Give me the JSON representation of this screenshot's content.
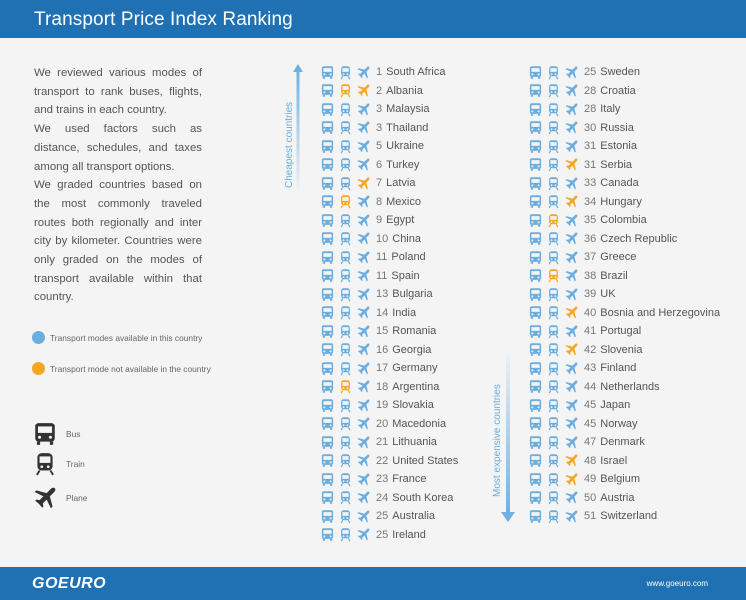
{
  "header": {
    "title": "Transport Price Index Ranking"
  },
  "intro": [
    "We reviewed various modes of transport to rank buses, flights, and trains in each country.",
    "We used factors such as distance, schedules, and taxes among all transport options.",
    "We graded countries based on the most commonly traveled routes both regionally and inter city by kilometer.  Countries were only graded on the modes of transport available within that country."
  ],
  "legend": {
    "available": "Transport modes available in this country",
    "unavailable": "Transport mode not available in the country",
    "available_color": "#6aaee0",
    "unavailable_color": "#f5a623"
  },
  "key": {
    "bus": "Bus",
    "train": "Train",
    "plane": "Plane"
  },
  "axis": {
    "cheapest": "Cheapest countries",
    "expensive": "Most expensive countries"
  },
  "ranking_left": [
    {
      "rank": "1",
      "country": "South Africa",
      "modes": [
        "blue",
        "blue",
        "blue"
      ]
    },
    {
      "rank": "2",
      "country": "Albania",
      "modes": [
        "blue",
        "orange",
        "orange"
      ]
    },
    {
      "rank": "3",
      "country": "Malaysia",
      "modes": [
        "blue",
        "blue",
        "blue"
      ]
    },
    {
      "rank": "3",
      "country": "Thailand",
      "modes": [
        "blue",
        "blue",
        "blue"
      ]
    },
    {
      "rank": "5",
      "country": "Ukraine",
      "modes": [
        "blue",
        "blue",
        "blue"
      ]
    },
    {
      "rank": "6",
      "country": "Turkey",
      "modes": [
        "blue",
        "blue",
        "blue"
      ]
    },
    {
      "rank": "7",
      "country": "Latvia",
      "modes": [
        "blue",
        "blue",
        "orange"
      ]
    },
    {
      "rank": "8",
      "country": "Mexico",
      "modes": [
        "blue",
        "orange",
        "blue"
      ]
    },
    {
      "rank": "9",
      "country": "Egypt",
      "modes": [
        "blue",
        "blue",
        "blue"
      ]
    },
    {
      "rank": "10",
      "country": "China",
      "modes": [
        "blue",
        "blue",
        "blue"
      ]
    },
    {
      "rank": "11",
      "country": "Poland",
      "modes": [
        "blue",
        "blue",
        "blue"
      ]
    },
    {
      "rank": "11",
      "country": "Spain",
      "modes": [
        "blue",
        "blue",
        "blue"
      ]
    },
    {
      "rank": "13",
      "country": "Bulgaria",
      "modes": [
        "blue",
        "blue",
        "blue"
      ]
    },
    {
      "rank": "14",
      "country": "India",
      "modes": [
        "blue",
        "blue",
        "blue"
      ]
    },
    {
      "rank": "15",
      "country": "Romania",
      "modes": [
        "blue",
        "blue",
        "blue"
      ]
    },
    {
      "rank": "16",
      "country": "Georgia",
      "modes": [
        "blue",
        "blue",
        "blue"
      ]
    },
    {
      "rank": "17",
      "country": "Germany",
      "modes": [
        "blue",
        "blue",
        "blue"
      ]
    },
    {
      "rank": "18",
      "country": "Argentina",
      "modes": [
        "blue",
        "orange",
        "blue"
      ]
    },
    {
      "rank": "19",
      "country": "Slovakia",
      "modes": [
        "blue",
        "blue",
        "blue"
      ]
    },
    {
      "rank": "20",
      "country": "Macedonia",
      "modes": [
        "blue",
        "blue",
        "blue"
      ]
    },
    {
      "rank": "21",
      "country": "Lithuania",
      "modes": [
        "blue",
        "blue",
        "blue"
      ]
    },
    {
      "rank": "22",
      "country": "United States",
      "modes": [
        "blue",
        "blue",
        "blue"
      ]
    },
    {
      "rank": "23",
      "country": "France",
      "modes": [
        "blue",
        "blue",
        "blue"
      ]
    },
    {
      "rank": "24",
      "country": "South Korea",
      "modes": [
        "blue",
        "blue",
        "blue"
      ]
    },
    {
      "rank": "25",
      "country": "Australia",
      "modes": [
        "blue",
        "blue",
        "blue"
      ]
    },
    {
      "rank": "25",
      "country": "Ireland",
      "modes": [
        "blue",
        "blue",
        "blue"
      ]
    }
  ],
  "ranking_right": [
    {
      "rank": "25",
      "country": "Sweden",
      "modes": [
        "blue",
        "blue",
        "blue"
      ]
    },
    {
      "rank": "28",
      "country": "Croatia",
      "modes": [
        "blue",
        "blue",
        "blue"
      ]
    },
    {
      "rank": "28",
      "country": "Italy",
      "modes": [
        "blue",
        "blue",
        "blue"
      ]
    },
    {
      "rank": "30",
      "country": "Russia",
      "modes": [
        "blue",
        "blue",
        "blue"
      ]
    },
    {
      "rank": "31",
      "country": "Estonia",
      "modes": [
        "blue",
        "blue",
        "blue"
      ]
    },
    {
      "rank": "31",
      "country": "Serbia",
      "modes": [
        "blue",
        "blue",
        "orange"
      ]
    },
    {
      "rank": "33",
      "country": "Canada",
      "modes": [
        "blue",
        "blue",
        "blue"
      ]
    },
    {
      "rank": "34",
      "country": "Hungary",
      "modes": [
        "blue",
        "blue",
        "orange"
      ]
    },
    {
      "rank": "35",
      "country": "Colombia",
      "modes": [
        "blue",
        "orange",
        "blue"
      ]
    },
    {
      "rank": "36",
      "country": "Czech Republic",
      "modes": [
        "blue",
        "blue",
        "blue"
      ]
    },
    {
      "rank": "37",
      "country": "Greece",
      "modes": [
        "blue",
        "blue",
        "blue"
      ]
    },
    {
      "rank": "38",
      "country": "Brazil",
      "modes": [
        "blue",
        "orange",
        "blue"
      ]
    },
    {
      "rank": "39",
      "country": "UK",
      "modes": [
        "blue",
        "blue",
        "blue"
      ]
    },
    {
      "rank": "40",
      "country": "Bosnia and Herzegovina",
      "modes": [
        "blue",
        "blue",
        "orange"
      ]
    },
    {
      "rank": "41",
      "country": "Portugal",
      "modes": [
        "blue",
        "blue",
        "blue"
      ]
    },
    {
      "rank": "42",
      "country": "Slovenia",
      "modes": [
        "blue",
        "blue",
        "orange"
      ]
    },
    {
      "rank": "43",
      "country": "Finland",
      "modes": [
        "blue",
        "blue",
        "blue"
      ]
    },
    {
      "rank": "44",
      "country": "Netherlands",
      "modes": [
        "blue",
        "blue",
        "blue"
      ]
    },
    {
      "rank": "45",
      "country": "Japan",
      "modes": [
        "blue",
        "blue",
        "blue"
      ]
    },
    {
      "rank": "45",
      "country": "Norway",
      "modes": [
        "blue",
        "blue",
        "blue"
      ]
    },
    {
      "rank": "47",
      "country": "Denmark",
      "modes": [
        "blue",
        "blue",
        "blue"
      ]
    },
    {
      "rank": "48",
      "country": "Israel",
      "modes": [
        "blue",
        "blue",
        "orange"
      ]
    },
    {
      "rank": "49",
      "country": "Belgium",
      "modes": [
        "blue",
        "blue",
        "orange"
      ]
    },
    {
      "rank": "50",
      "country": "Austria",
      "modes": [
        "blue",
        "blue",
        "blue"
      ]
    },
    {
      "rank": "51",
      "country": "Switzerland",
      "modes": [
        "blue",
        "blue",
        "blue"
      ]
    }
  ],
  "footer": {
    "logo": "GOEURO",
    "url": "www.goeuro.com"
  }
}
